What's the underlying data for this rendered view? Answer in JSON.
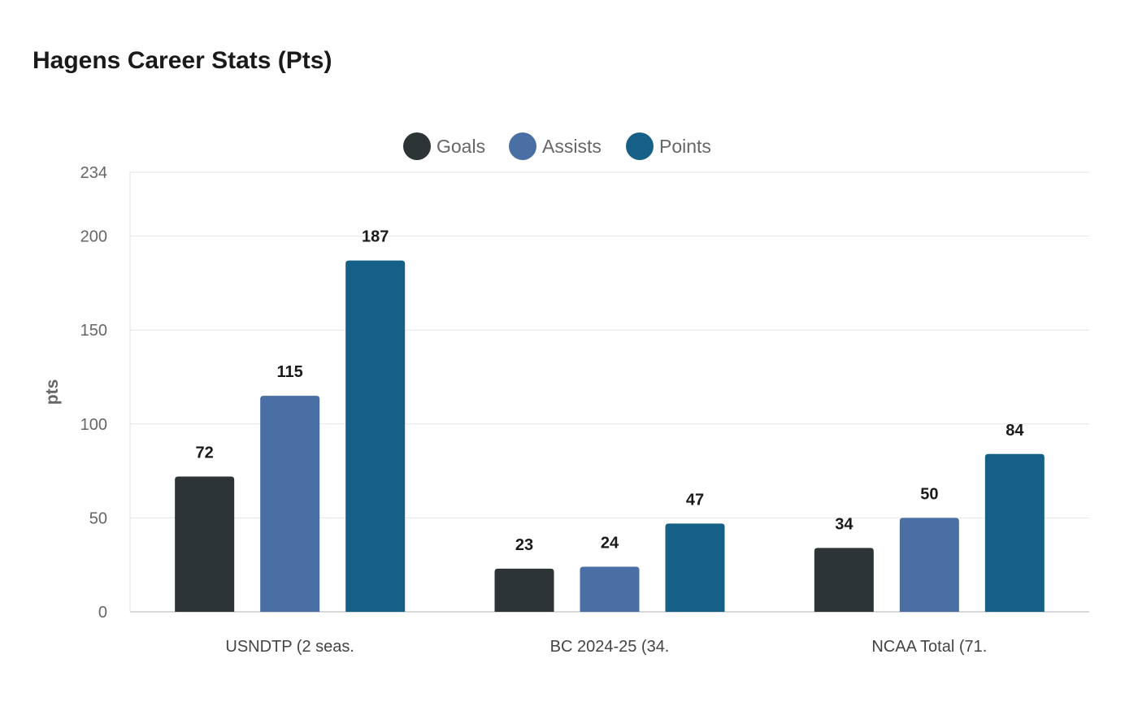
{
  "chart_data": {
    "type": "bar",
    "title": "Hagens Career Stats (Pts)",
    "ylabel": "pts",
    "xlabel": "",
    "categories": [
      "USNDTP (2 seas.",
      "BC 2024-25 (34.",
      "NCAA Total (71."
    ],
    "series": [
      {
        "name": "Goals",
        "color": "#2d3436",
        "values": [
          72,
          23,
          34
        ]
      },
      {
        "name": "Assists",
        "color": "#4a6fa5",
        "values": [
          115,
          24,
          50
        ]
      },
      {
        "name": "Points",
        "color": "#166088",
        "values": [
          187,
          47,
          84
        ]
      }
    ],
    "ylim": [
      0,
      234
    ],
    "yticks": [
      0,
      50,
      100,
      150,
      200,
      234
    ],
    "grid": true,
    "legend_position": "top-center",
    "data_labels": true
  }
}
